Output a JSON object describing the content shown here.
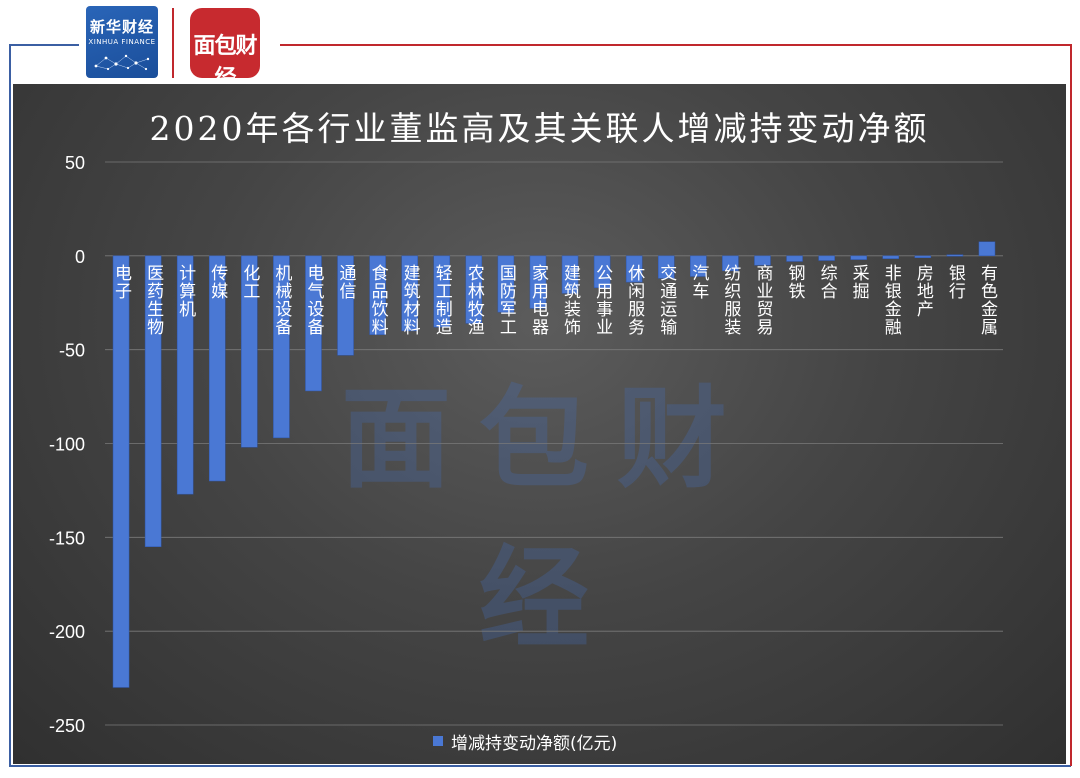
{
  "brand": {
    "xinhua_name": "新华财经",
    "xinhua_sub": "XINHUA FINANCE",
    "partner_name": "面包财经"
  },
  "colors": {
    "bar": "#4a78d4",
    "bar_edge": "#2f57ad",
    "grid": "#7a7a7a",
    "text": "#ffffff"
  },
  "watermark_text": "面包财经",
  "chart_data": {
    "type": "bar",
    "title": "2020年各行业董监高及其关联人增减持变动净额",
    "xlabel": "",
    "ylabel": "",
    "ylim": [
      -250,
      50
    ],
    "yticks": [
      50,
      0,
      -50,
      -100,
      -150,
      -200,
      -250
    ],
    "grid": true,
    "legend_position": "bottom",
    "categories": [
      "电子",
      "医药生物",
      "计算机",
      "传媒",
      "化工",
      "机械设备",
      "电气设备",
      "通信",
      "食品饮料",
      "建筑材料",
      "轻工制造",
      "农林牧渔",
      "国防军工",
      "家用电器",
      "建筑装饰",
      "公用事业",
      "休闲服务",
      "交通运输",
      "汽车",
      "纺织服装",
      "商业贸易",
      "钢铁",
      "综合",
      "采掘",
      "非银金融",
      "房地产",
      "银行",
      "有色金属"
    ],
    "series": [
      {
        "name": "增减持变动净额(亿元)",
        "values": [
          -230,
          -155,
          -127,
          -120,
          -102,
          -97,
          -72,
          -53,
          -42,
          -40,
          -38,
          -36,
          -30,
          -28,
          -20,
          -17,
          -14,
          -12,
          -11,
          -8,
          -5,
          -3,
          -2.5,
          -2,
          -1.5,
          -1,
          0.6,
          7.5
        ]
      }
    ]
  }
}
